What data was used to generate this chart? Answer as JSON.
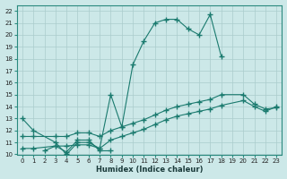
{
  "xlabel": "Humidex (Indice chaleur)",
  "ylabel": "",
  "bg_color": "#cce8e8",
  "grid_color": "#aacccc",
  "line_color": "#1a7a6e",
  "xlim": [
    -0.5,
    23.5
  ],
  "ylim": [
    10,
    22.5
  ],
  "yticks": [
    10,
    11,
    12,
    13,
    14,
    15,
    16,
    17,
    18,
    19,
    20,
    21,
    22
  ],
  "xticks": [
    0,
    1,
    2,
    3,
    4,
    5,
    6,
    7,
    8,
    9,
    10,
    11,
    12,
    13,
    14,
    15,
    16,
    17,
    18,
    19,
    20,
    21,
    22,
    23
  ],
  "line1_x": [
    0,
    1,
    3,
    4,
    5,
    6,
    7,
    8,
    9,
    10,
    11,
    12,
    13,
    14,
    15,
    16,
    17,
    18
  ],
  "line1_y": [
    13,
    12,
    11,
    10,
    11,
    11,
    10.5,
    15,
    12.3,
    17.5,
    19.5,
    21,
    21.3,
    21.3,
    20.5,
    20,
    21.7,
    18.2
  ],
  "line2_x": [
    2,
    3,
    4,
    5,
    6,
    7,
    8
  ],
  "line2_y": [
    10.3,
    10.7,
    10.2,
    11.2,
    11.2,
    10.3,
    10.3
  ],
  "line3_x": [
    0,
    1,
    3,
    4,
    5,
    6,
    7,
    8,
    9,
    10,
    11,
    12,
    13,
    14,
    15,
    16,
    17,
    18,
    20,
    21,
    22,
    23
  ],
  "line3_y": [
    11.5,
    11.5,
    11.5,
    11.5,
    11.8,
    11.8,
    11.5,
    12.0,
    12.3,
    12.6,
    12.9,
    13.3,
    13.7,
    14.0,
    14.2,
    14.4,
    14.6,
    15.0,
    15.0,
    14.2,
    13.8,
    13.9
  ],
  "line4_x": [
    0,
    1,
    3,
    4,
    5,
    6,
    7,
    8,
    9,
    10,
    11,
    12,
    13,
    14,
    15,
    16,
    17,
    18,
    20,
    21,
    22,
    23
  ],
  "line4_y": [
    10.5,
    10.5,
    10.7,
    10.7,
    10.8,
    10.8,
    10.5,
    11.2,
    11.5,
    11.8,
    12.1,
    12.5,
    12.9,
    13.2,
    13.4,
    13.6,
    13.8,
    14.1,
    14.5,
    14.0,
    13.6,
    14.0
  ]
}
